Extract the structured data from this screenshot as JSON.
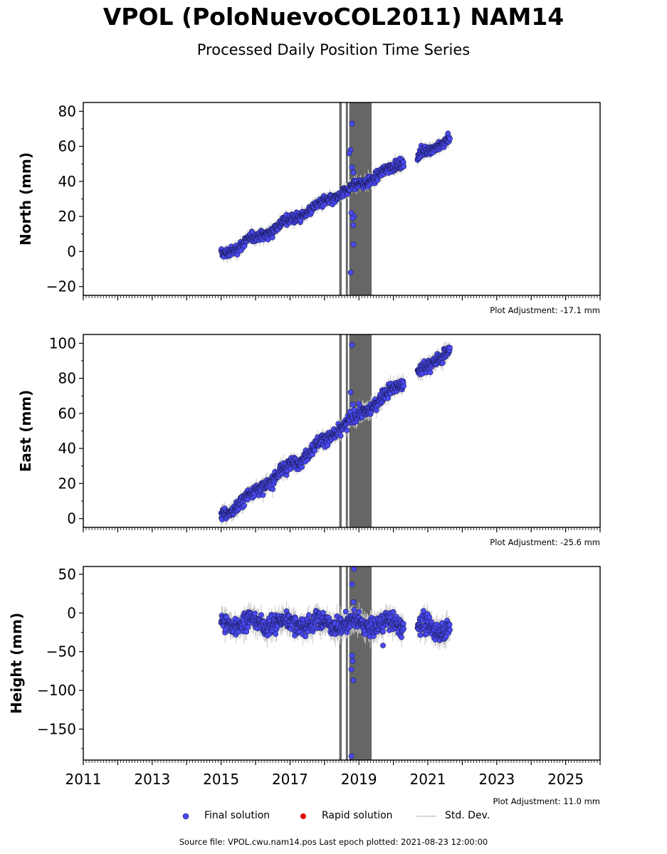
{
  "figure": {
    "title": "VPOL (PoloNuevoCOL2011) NAM14",
    "subtitle": "Processed Daily Position Time Series",
    "footer": "Source file: VPOL.cwu.nam14.pos  Last epoch plotted: 2021-08-23 12:00:00"
  },
  "legend": {
    "final": "Final solution",
    "rapid": "Rapid solution",
    "std": "Std. Dev."
  },
  "colors": {
    "final_point": "#4a4af4",
    "rapid_point": "#e00000",
    "std_dev": "#c8c8c8",
    "offset_band": "#666666"
  },
  "chart_data": [
    {
      "type": "scatter",
      "ylabel": "North (mm)",
      "xlim": [
        2011,
        2026
      ],
      "ylim": [
        -25,
        85
      ],
      "yticks": [
        -20,
        0,
        20,
        40,
        60,
        80
      ],
      "adjustment": "Plot Adjustment: -17.1 mm",
      "xtick_labels_shown": false,
      "segments": [
        {
          "x_start": 2015.0,
          "x_end": 2020.3,
          "y_start": -2,
          "y_end": 51,
          "scatter": 2.0
        },
        {
          "x_start": 2020.7,
          "x_end": 2021.64,
          "y_start": 54,
          "y_end": 65,
          "scatter": 2.0
        }
      ],
      "outliers": [
        {
          "x": 2018.8,
          "y": 73
        },
        {
          "x": 2018.76,
          "y": 58
        },
        {
          "x": 2018.72,
          "y": 56
        },
        {
          "x": 2018.8,
          "y": 48
        },
        {
          "x": 2018.84,
          "y": 45
        },
        {
          "x": 2018.78,
          "y": 22
        },
        {
          "x": 2018.86,
          "y": 20
        },
        {
          "x": 2018.82,
          "y": 19
        },
        {
          "x": 2018.84,
          "y": 15
        },
        {
          "x": 2018.84,
          "y": 4
        },
        {
          "x": 2018.76,
          "y": -12
        }
      ]
    },
    {
      "type": "scatter",
      "ylabel": "East (mm)",
      "xlim": [
        2011,
        2026
      ],
      "ylim": [
        -5,
        105
      ],
      "yticks": [
        0,
        20,
        40,
        60,
        80,
        100
      ],
      "adjustment": "Plot Adjustment: -25.6 mm",
      "xtick_labels_shown": false,
      "segments": [
        {
          "x_start": 2015.0,
          "x_end": 2020.3,
          "y_start": 1,
          "y_end": 78,
          "scatter": 2.5
        },
        {
          "x_start": 2020.7,
          "x_end": 2021.64,
          "y_start": 82,
          "y_end": 97,
          "scatter": 2.5
        }
      ],
      "outliers": [
        {
          "x": 2018.8,
          "y": 99
        },
        {
          "x": 2018.76,
          "y": 72
        },
        {
          "x": 2018.82,
          "y": 65
        },
        {
          "x": 2018.86,
          "y": 62
        },
        {
          "x": 2018.74,
          "y": 61
        }
      ]
    },
    {
      "type": "scatter",
      "ylabel": "Height (mm)",
      "xlim": [
        2011,
        2026
      ],
      "ylim": [
        -190,
        60
      ],
      "yticks": [
        -150,
        -100,
        -50,
        0,
        50
      ],
      "adjustment": "Plot Adjustment: 11.0 mm",
      "xtick_labels_shown": true,
      "xticks": [
        2011,
        2013,
        2015,
        2017,
        2019,
        2021,
        2023,
        2025
      ],
      "segments": [
        {
          "x_start": 2015.0,
          "x_end": 2020.3,
          "y_start": -12,
          "y_end": -15,
          "scatter": 8.0
        },
        {
          "x_start": 2020.7,
          "x_end": 2021.64,
          "y_start": -18,
          "y_end": -20,
          "scatter": 8.0
        }
      ],
      "outliers": [
        {
          "x": 2018.86,
          "y": 57
        },
        {
          "x": 2018.8,
          "y": 37
        },
        {
          "x": 2018.84,
          "y": 14
        },
        {
          "x": 2018.86,
          "y": 4
        },
        {
          "x": 2018.8,
          "y": -55
        },
        {
          "x": 2018.82,
          "y": -62
        },
        {
          "x": 2018.78,
          "y": -73
        },
        {
          "x": 2018.84,
          "y": -87
        },
        {
          "x": 2018.78,
          "y": -185
        },
        {
          "x": 2019.7,
          "y": -42
        }
      ]
    }
  ],
  "offset_bands": [
    {
      "x_start": 2018.43,
      "x_end": 2018.5
    },
    {
      "x_start": 2018.62,
      "x_end": 2018.68
    },
    {
      "x_start": 2018.72,
      "x_end": 2019.37
    }
  ]
}
